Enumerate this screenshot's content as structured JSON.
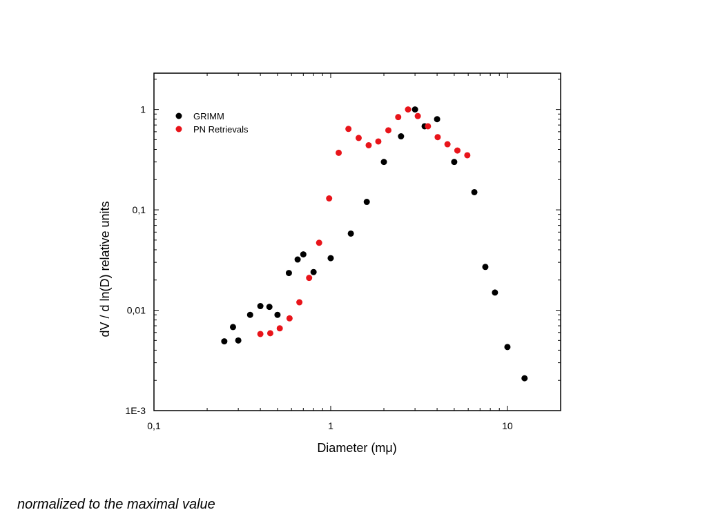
{
  "chart_data": {
    "type": "scatter",
    "x_scale": "log",
    "y_scale": "log",
    "xlabel": "Diameter (mμ)",
    "ylabel": "dV / d ln(D) relative units",
    "xlim": [
      0.1,
      20
    ],
    "ylim": [
      0.001,
      2.3
    ],
    "x_ticks": [
      {
        "value": 0.1,
        "label": "0,1"
      },
      {
        "value": 1,
        "label": "1"
      },
      {
        "value": 10,
        "label": "10"
      }
    ],
    "y_ticks": [
      {
        "value": 0.001,
        "label": "1E-3"
      },
      {
        "value": 0.01,
        "label": "0,01"
      },
      {
        "value": 0.1,
        "label": "0,1"
      },
      {
        "value": 1,
        "label": "1"
      }
    ],
    "legend_position": "top-left",
    "series": [
      {
        "name": "GRIMM",
        "color": "#000000",
        "points": [
          [
            0.25,
            0.0049
          ],
          [
            0.28,
            0.0068
          ],
          [
            0.3,
            0.005
          ],
          [
            0.35,
            0.009
          ],
          [
            0.4,
            0.011
          ],
          [
            0.45,
            0.0108
          ],
          [
            0.5,
            0.009
          ],
          [
            0.58,
            0.0235
          ],
          [
            0.65,
            0.032
          ],
          [
            0.7,
            0.036
          ],
          [
            0.8,
            0.024
          ],
          [
            1.0,
            0.033
          ],
          [
            1.3,
            0.058
          ],
          [
            1.6,
            0.12
          ],
          [
            2.0,
            0.3
          ],
          [
            2.5,
            0.54
          ],
          [
            3.0,
            1.0
          ],
          [
            3.4,
            0.68
          ],
          [
            4.0,
            0.8
          ],
          [
            5.0,
            0.3
          ],
          [
            6.5,
            0.15
          ],
          [
            7.5,
            0.027
          ],
          [
            8.5,
            0.015
          ],
          [
            10.0,
            0.0043
          ],
          [
            12.5,
            0.0021
          ]
        ]
      },
      {
        "name": "PN Retrievals",
        "color": "#e8141a",
        "points": [
          [
            0.4,
            0.0058
          ],
          [
            0.455,
            0.0059
          ],
          [
            0.515,
            0.0066
          ],
          [
            0.585,
            0.0083
          ],
          [
            0.665,
            0.012
          ],
          [
            0.755,
            0.021
          ],
          [
            0.86,
            0.047
          ],
          [
            0.98,
            0.13
          ],
          [
            1.11,
            0.37
          ],
          [
            1.26,
            0.64
          ],
          [
            1.44,
            0.52
          ],
          [
            1.64,
            0.44
          ],
          [
            1.86,
            0.48
          ],
          [
            2.12,
            0.62
          ],
          [
            2.41,
            0.84
          ],
          [
            2.74,
            1.0
          ],
          [
            3.11,
            0.86
          ],
          [
            3.55,
            0.68
          ],
          [
            4.03,
            0.53
          ],
          [
            4.58,
            0.45
          ],
          [
            5.21,
            0.39
          ],
          [
            5.93,
            0.35
          ]
        ]
      }
    ]
  },
  "footnote": "normalized to the maximal value"
}
